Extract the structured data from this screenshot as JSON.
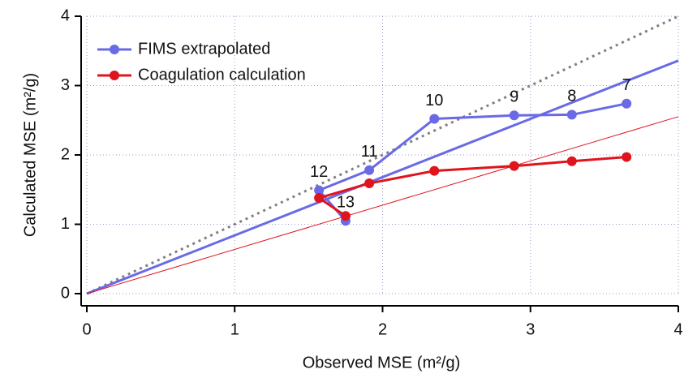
{
  "chart_data": {
    "type": "line",
    "x_label": "Observed MSE (m²/g)",
    "y_label": "Calculated MSE (m²/g)",
    "xlim": [
      0,
      4
    ],
    "ylim": [
      0,
      4
    ],
    "xticks": [
      0,
      1,
      2,
      3,
      4
    ],
    "yticks": [
      0,
      1,
      2,
      3,
      4
    ],
    "grid": true,
    "legend": "upper left",
    "series": [
      {
        "name": "FIMS extrapolated",
        "color": "#6a6ae6",
        "x": [
          3.65,
          3.28,
          2.89,
          2.35,
          1.91,
          1.57,
          1.75
        ],
        "values": [
          2.74,
          2.58,
          2.57,
          2.52,
          1.78,
          1.49,
          1.05
        ],
        "point_labels": [
          "7",
          "8",
          "9",
          "10",
          "11",
          "12",
          "13"
        ]
      },
      {
        "name": "Coagulation calculation",
        "color": "#e0141c",
        "x": [
          3.65,
          3.28,
          2.89,
          2.35,
          1.91,
          1.57,
          1.75
        ],
        "values": [
          1.97,
          1.91,
          1.84,
          1.77,
          1.59,
          1.38,
          1.12
        ]
      }
    ],
    "reference_lines": [
      {
        "slope": 1,
        "color": "#808080",
        "dashed": true,
        "width": 3
      },
      {
        "slope": 0.84,
        "color": "#6a6ae6",
        "dashed": false,
        "width": 3
      },
      {
        "slope": 0.638,
        "color": "#e0141c",
        "dashed": false,
        "width": 1
      }
    ]
  }
}
